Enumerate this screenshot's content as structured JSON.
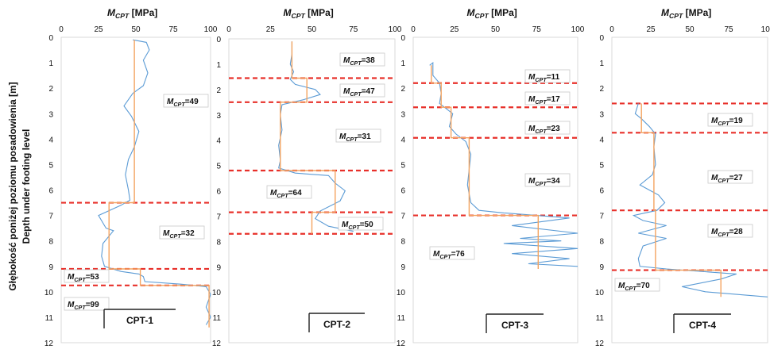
{
  "ylabel_pl": "Głębokość poniżej poziomu posadowienia [m]",
  "ylabel_en": "Depth under footing level",
  "chart_data": [
    {
      "type": "line",
      "title": "CPT-1",
      "xlabel": "M_CPT [MPa]",
      "xlim": [
        0,
        100
      ],
      "ylim": [
        0,
        12
      ],
      "xticks": [
        "0",
        "25",
        "50",
        "75",
        "100"
      ],
      "yticks": [
        "0",
        "1",
        "2",
        "3",
        "4",
        "5",
        "6",
        "7",
        "8",
        "9",
        "10",
        "11",
        "12"
      ],
      "series": [
        {
          "role": "measured",
          "color": "#5b9bd5",
          "points": [
            [
              48,
              0.1
            ],
            [
              57,
              0.2
            ],
            [
              59,
              0.5
            ],
            [
              55,
              0.9
            ],
            [
              58,
              1.4
            ],
            [
              55,
              1.9
            ],
            [
              48,
              2.2
            ],
            [
              42,
              2.7
            ],
            [
              47,
              3.1
            ],
            [
              52,
              3.7
            ],
            [
              49,
              4.3
            ],
            [
              45,
              4.8
            ],
            [
              43,
              5.4
            ],
            [
              45,
              6.0
            ],
            [
              46,
              6.4
            ],
            [
              40,
              6.6
            ],
            [
              25,
              7.0
            ],
            [
              30,
              7.5
            ],
            [
              35,
              7.6
            ],
            [
              28,
              8.1
            ],
            [
              27,
              8.6
            ],
            [
              29,
              9.0
            ],
            [
              40,
              9.2
            ],
            [
              52,
              9.3
            ],
            [
              55,
              9.4
            ],
            [
              56,
              9.6
            ],
            [
              80,
              9.7
            ],
            [
              97,
              9.8
            ],
            [
              100,
              10.1
            ],
            [
              97,
              10.6
            ],
            [
              100,
              11.0
            ],
            [
              97,
              11.3
            ]
          ]
        },
        {
          "role": "average",
          "color": "#f4a460",
          "points": [
            [
              49,
              0.1
            ],
            [
              49,
              6.5
            ],
            [
              32,
              6.5
            ],
            [
              32,
              9.1
            ],
            [
              53,
              9.1
            ],
            [
              53,
              9.75
            ],
            [
              99,
              9.75
            ],
            [
              99,
              11.4
            ]
          ]
        }
      ],
      "boundaries": [
        6.5,
        9.1,
        9.75
      ],
      "zones": [
        {
          "label": "M_CPT=49",
          "value": 49
        },
        {
          "label": "M_CPT=32",
          "value": 32
        },
        {
          "label": "M_CPT=53",
          "value": 53
        },
        {
          "label": "M_CPT=99",
          "value": 99
        }
      ]
    },
    {
      "type": "line",
      "title": "CPT-2",
      "xlabel": "M_CPT [MPa]",
      "xlim": [
        0,
        100
      ],
      "ylim": [
        0,
        12
      ],
      "xticks": [
        "0",
        "25",
        "50",
        "75",
        "100"
      ],
      "yticks": [
        "0",
        "1",
        "2",
        "3",
        "4",
        "5",
        "6",
        "7",
        "8",
        "9",
        "10",
        "11",
        "12"
      ],
      "series": [
        {
          "role": "measured",
          "color": "#5b9bd5",
          "points": [
            [
              38,
              0.1
            ],
            [
              38,
              0.6
            ],
            [
              37,
              1.0
            ],
            [
              39,
              1.3
            ],
            [
              37,
              1.6
            ],
            [
              40,
              1.8
            ],
            [
              46,
              1.9
            ],
            [
              52,
              2.0
            ],
            [
              55,
              2.2
            ],
            [
              45,
              2.4
            ],
            [
              32,
              2.6
            ],
            [
              31,
              3.0
            ],
            [
              32,
              3.6
            ],
            [
              30,
              4.2
            ],
            [
              31,
              4.8
            ],
            [
              30,
              5.1
            ],
            [
              40,
              5.3
            ],
            [
              60,
              5.4
            ],
            [
              64,
              5.7
            ],
            [
              70,
              6.0
            ],
            [
              67,
              6.4
            ],
            [
              55,
              6.8
            ],
            [
              52,
              7.1
            ],
            [
              60,
              7.4
            ],
            [
              75,
              7.6
            ]
          ]
        },
        {
          "role": "average",
          "color": "#f4a460",
          "points": [
            [
              38,
              0.1
            ],
            [
              38,
              1.55
            ],
            [
              47,
              1.55
            ],
            [
              47,
              2.5
            ],
            [
              31,
              2.5
            ],
            [
              31,
              5.2
            ],
            [
              64,
              5.2
            ],
            [
              64,
              6.85
            ],
            [
              50,
              6.85
            ],
            [
              50,
              7.7
            ]
          ]
        }
      ],
      "boundaries": [
        1.55,
        2.5,
        5.2,
        6.85,
        7.7
      ],
      "zones": [
        {
          "label": "M_CPT=38",
          "value": 38
        },
        {
          "label": "M_CPT=47",
          "value": 47
        },
        {
          "label": "M_CPT=31",
          "value": 31
        },
        {
          "label": "M_CPT=64",
          "value": 64
        },
        {
          "label": "M_CPT=50",
          "value": 50
        }
      ]
    },
    {
      "type": "line",
      "title": "CPT-3",
      "xlabel": "M_CPT [MPa]",
      "xlim": [
        0,
        100
      ],
      "ylim": [
        0,
        12
      ],
      "xticks": [
        "0",
        "25",
        "50",
        "75",
        "100"
      ],
      "yticks": [
        "0",
        "1",
        "2",
        "3",
        "4",
        "5",
        "6",
        "7",
        "8",
        "9",
        "10",
        "11",
        "12"
      ],
      "series": [
        {
          "role": "measured",
          "color": "#5b9bd5",
          "points": [
            [
              10,
              1.1
            ],
            [
              12,
              1.0
            ],
            [
              12,
              1.5
            ],
            [
              16,
              1.8
            ],
            [
              17,
              2.2
            ],
            [
              16,
              2.6
            ],
            [
              20,
              2.8
            ],
            [
              24,
              3.0
            ],
            [
              22,
              3.5
            ],
            [
              26,
              3.8
            ],
            [
              32,
              4.1
            ],
            [
              35,
              4.6
            ],
            [
              34,
              5.2
            ],
            [
              33,
              5.8
            ],
            [
              35,
              6.5
            ],
            [
              40,
              6.8
            ],
            [
              55,
              6.9
            ],
            [
              75,
              7.0
            ],
            [
              95,
              7.1
            ],
            [
              60,
              7.4
            ],
            [
              100,
              7.7
            ],
            [
              65,
              7.9
            ],
            [
              90,
              8.0
            ],
            [
              55,
              8.1
            ],
            [
              100,
              8.3
            ],
            [
              60,
              8.5
            ],
            [
              95,
              8.7
            ],
            [
              70,
              8.9
            ],
            [
              100,
              9.0
            ]
          ]
        },
        {
          "role": "average",
          "color": "#f4a460",
          "points": [
            [
              11,
              1.1
            ],
            [
              11,
              1.8
            ],
            [
              17,
              1.8
            ],
            [
              17,
              2.75
            ],
            [
              23,
              2.75
            ],
            [
              23,
              3.95
            ],
            [
              34,
              3.95
            ],
            [
              34,
              7.0
            ],
            [
              76,
              7.0
            ],
            [
              76,
              9.1
            ]
          ]
        }
      ],
      "boundaries": [
        1.8,
        2.75,
        3.95,
        7.0
      ],
      "zones": [
        {
          "label": "M_CPT=11",
          "value": 11
        },
        {
          "label": "M_CPT=17",
          "value": 17
        },
        {
          "label": "M_CPT=23",
          "value": 23
        },
        {
          "label": "M_CPT=34",
          "value": 34
        },
        {
          "label": "M_CPT=76",
          "value": 76
        }
      ]
    },
    {
      "type": "line",
      "title": "CPT-4",
      "xlabel": "M_CPT [MPa]",
      "xlim": [
        0,
        100
      ],
      "ylim": [
        0,
        12
      ],
      "xticks": [
        "0",
        "25",
        "50",
        "75",
        "100"
      ],
      "yticks": [
        "0",
        "1",
        "2",
        "3",
        "4",
        "5",
        "6",
        "7",
        "8",
        "9",
        "10",
        "11",
        "12"
      ],
      "series": [
        {
          "role": "measured",
          "color": "#5b9bd5",
          "points": [
            [
              17,
              2.6
            ],
            [
              15,
              3.0
            ],
            [
              19,
              3.2
            ],
            [
              24,
              3.5
            ],
            [
              28,
              3.8
            ],
            [
              27,
              4.3
            ],
            [
              28,
              5.0
            ],
            [
              26,
              5.4
            ],
            [
              18,
              5.8
            ],
            [
              24,
              6.0
            ],
            [
              30,
              6.2
            ],
            [
              34,
              6.5
            ],
            [
              29,
              6.8
            ],
            [
              14,
              7.0
            ],
            [
              20,
              7.2
            ],
            [
              35,
              7.4
            ],
            [
              17,
              7.7
            ],
            [
              35,
              7.9
            ],
            [
              20,
              8.2
            ],
            [
              17,
              8.7
            ],
            [
              18,
              9.0
            ],
            [
              35,
              9.1
            ],
            [
              80,
              9.3
            ],
            [
              70,
              9.5
            ],
            [
              45,
              9.8
            ],
            [
              60,
              10.0
            ],
            [
              100,
              10.2
            ]
          ]
        },
        {
          "role": "average",
          "color": "#f4a460",
          "points": [
            [
              19,
              2.6
            ],
            [
              19,
              3.75
            ],
            [
              27,
              3.75
            ],
            [
              27,
              6.8
            ],
            [
              28,
              6.8
            ],
            [
              28,
              9.15
            ],
            [
              70,
              9.15
            ],
            [
              70,
              10.2
            ]
          ]
        }
      ],
      "boundaries": [
        2.6,
        3.75,
        6.8,
        9.15
      ],
      "zones": [
        {
          "label": "M_CPT=19",
          "value": 19
        },
        {
          "label": "M_CPT=27",
          "value": 27
        },
        {
          "label": "M_CPT=28",
          "value": 28
        },
        {
          "label": "M_CPT=70",
          "value": 70
        }
      ]
    }
  ]
}
